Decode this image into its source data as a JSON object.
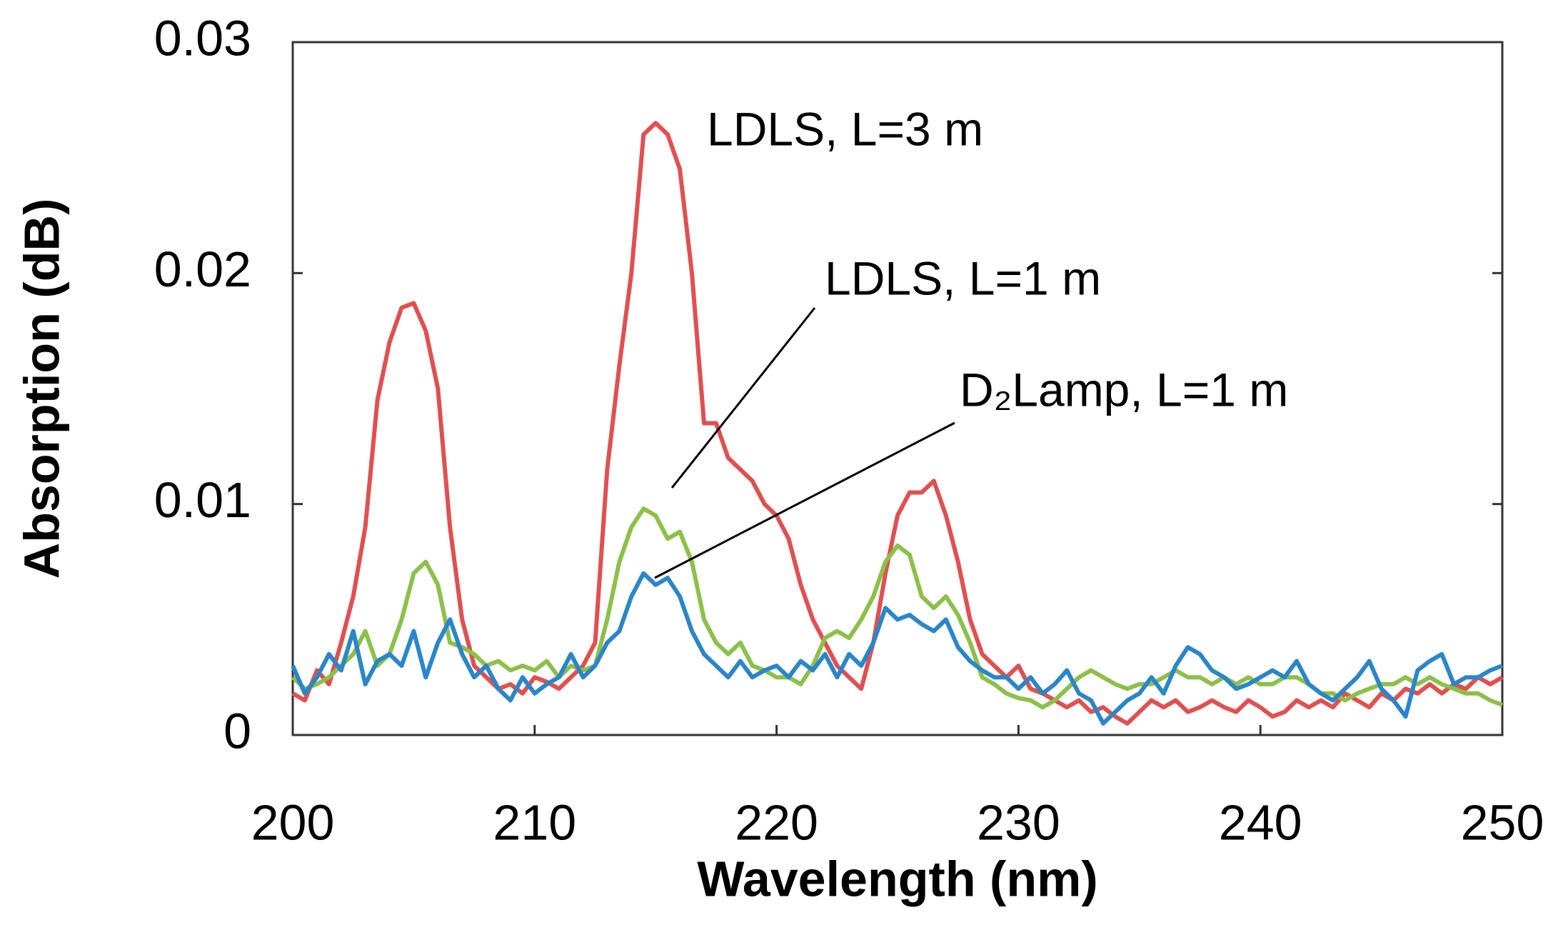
{
  "chart_data": {
    "type": "line",
    "xlabel": "Wavelength (nm)",
    "ylabel": "Absorption (dB)",
    "xlim": [
      200,
      250
    ],
    "xticks": [
      200,
      210,
      220,
      230,
      240,
      250
    ],
    "ylim": [
      0,
      0.03
    ],
    "yticks": [
      0,
      0.01,
      0.02,
      0.03
    ],
    "grid": false,
    "x": [
      200,
      200.5,
      201,
      201.5,
      202,
      202.5,
      203,
      203.5,
      204,
      204.5,
      205,
      205.5,
      206,
      206.5,
      207,
      207.5,
      208,
      208.5,
      209,
      209.5,
      210,
      210.5,
      211,
      211.5,
      212,
      212.5,
      213,
      213.5,
      214,
      214.5,
      215,
      215.5,
      216,
      216.5,
      217,
      217.5,
      218,
      218.5,
      219,
      219.5,
      220,
      220.5,
      221,
      221.5,
      222,
      222.5,
      223,
      223.5,
      224,
      224.5,
      225,
      225.5,
      226,
      226.5,
      227,
      227.5,
      228,
      228.5,
      229,
      229.5,
      230,
      230.5,
      231,
      231.5,
      232,
      232.5,
      233,
      233.5,
      234,
      234.5,
      235,
      235.5,
      236,
      236.5,
      237,
      237.5,
      238,
      238.5,
      239,
      239.5,
      240,
      240.5,
      241,
      241.5,
      242,
      242.5,
      243,
      243.5,
      244,
      244.5,
      245,
      245.5,
      246,
      246.5,
      247,
      247.5,
      248,
      248.5,
      249,
      249.5,
      250
    ],
    "series": [
      {
        "name": "LDLS, L=3 m",
        "color": "#e05050",
        "values": [
          0.0018,
          0.0015,
          0.0028,
          0.0022,
          0.004,
          0.006,
          0.009,
          0.0145,
          0.017,
          0.0185,
          0.0187,
          0.0175,
          0.015,
          0.009,
          0.005,
          0.003,
          0.0025,
          0.002,
          0.0022,
          0.0018,
          0.0025,
          0.0023,
          0.002,
          0.0025,
          0.003,
          0.004,
          0.0115,
          0.016,
          0.02,
          0.026,
          0.0265,
          0.026,
          0.0245,
          0.02,
          0.0135,
          0.0135,
          0.012,
          0.0115,
          0.011,
          0.01,
          0.0095,
          0.0085,
          0.0065,
          0.005,
          0.004,
          0.003,
          0.0025,
          0.002,
          0.004,
          0.007,
          0.0095,
          0.0105,
          0.0105,
          0.011,
          0.0095,
          0.0075,
          0.005,
          0.0035,
          0.003,
          0.0025,
          0.003,
          0.002,
          0.0018,
          0.0015,
          0.0012,
          0.0015,
          0.001,
          0.0012,
          0.0008,
          0.0005,
          0.001,
          0.0015,
          0.0012,
          0.0015,
          0.001,
          0.0012,
          0.0015,
          0.0012,
          0.001,
          0.0015,
          0.0012,
          0.0008,
          0.001,
          0.0015,
          0.0012,
          0.0015,
          0.0012,
          0.0018,
          0.0015,
          0.0012,
          0.0018,
          0.0015,
          0.002,
          0.0018,
          0.0022,
          0.0018,
          0.0022,
          0.002,
          0.0025,
          0.0022,
          0.0025
        ]
      },
      {
        "name": "LDLS, L=1 m",
        "color": "#8cc04a",
        "values": [
          0.0025,
          0.002,
          0.0022,
          0.0025,
          0.003,
          0.0035,
          0.0045,
          0.003,
          0.0035,
          0.005,
          0.007,
          0.0075,
          0.0065,
          0.004,
          0.0038,
          0.0035,
          0.003,
          0.0032,
          0.0028,
          0.003,
          0.0028,
          0.0032,
          0.0025,
          0.003,
          0.0028,
          0.003,
          0.005,
          0.0075,
          0.009,
          0.0098,
          0.0095,
          0.0085,
          0.0088,
          0.0075,
          0.005,
          0.004,
          0.0035,
          0.004,
          0.003,
          0.0028,
          0.0025,
          0.0025,
          0.0022,
          0.003,
          0.0042,
          0.0045,
          0.0042,
          0.005,
          0.006,
          0.0075,
          0.0082,
          0.0078,
          0.006,
          0.0055,
          0.006,
          0.0052,
          0.004,
          0.0025,
          0.0022,
          0.0018,
          0.0016,
          0.0015,
          0.0012,
          0.0015,
          0.002,
          0.0025,
          0.0028,
          0.0025,
          0.0022,
          0.002,
          0.0022,
          0.0022,
          0.0025,
          0.0028,
          0.0025,
          0.0025,
          0.0022,
          0.0025,
          0.0022,
          0.0025,
          0.0022,
          0.0022,
          0.0025,
          0.0025,
          0.0022,
          0.0018,
          0.0018,
          0.0015,
          0.0018,
          0.002,
          0.0022,
          0.0022,
          0.0025,
          0.0022,
          0.0025,
          0.0022,
          0.002,
          0.0018,
          0.0018,
          0.0015,
          0.0013
        ]
      },
      {
        "name": "D₂Lamp, L=1 m",
        "color": "#2a86c8",
        "values": [
          0.003,
          0.0018,
          0.0025,
          0.0035,
          0.0028,
          0.0045,
          0.0022,
          0.0032,
          0.0035,
          0.003,
          0.0045,
          0.0025,
          0.004,
          0.005,
          0.0035,
          0.0025,
          0.003,
          0.002,
          0.0015,
          0.0025,
          0.0018,
          0.0022,
          0.0025,
          0.0035,
          0.0025,
          0.003,
          0.004,
          0.0045,
          0.006,
          0.007,
          0.0065,
          0.0068,
          0.006,
          0.0045,
          0.0035,
          0.003,
          0.0025,
          0.0032,
          0.0025,
          0.0028,
          0.003,
          0.0025,
          0.0032,
          0.0028,
          0.0035,
          0.0025,
          0.0035,
          0.003,
          0.004,
          0.0055,
          0.005,
          0.0052,
          0.0048,
          0.0045,
          0.005,
          0.0038,
          0.0032,
          0.0028,
          0.0025,
          0.0025,
          0.002,
          0.0025,
          0.0018,
          0.0022,
          0.0028,
          0.0018,
          0.0015,
          0.0005,
          0.001,
          0.0015,
          0.0018,
          0.0025,
          0.0018,
          0.003,
          0.0038,
          0.0035,
          0.0028,
          0.0025,
          0.002,
          0.0022,
          0.0025,
          0.0028,
          0.0025,
          0.0032,
          0.0022,
          0.0018,
          0.0015,
          0.002,
          0.0025,
          0.0032,
          0.002,
          0.0015,
          0.0008,
          0.0028,
          0.0032,
          0.0035,
          0.0022,
          0.0025,
          0.0025,
          0.0028,
          0.003
        ]
      }
    ]
  }
}
